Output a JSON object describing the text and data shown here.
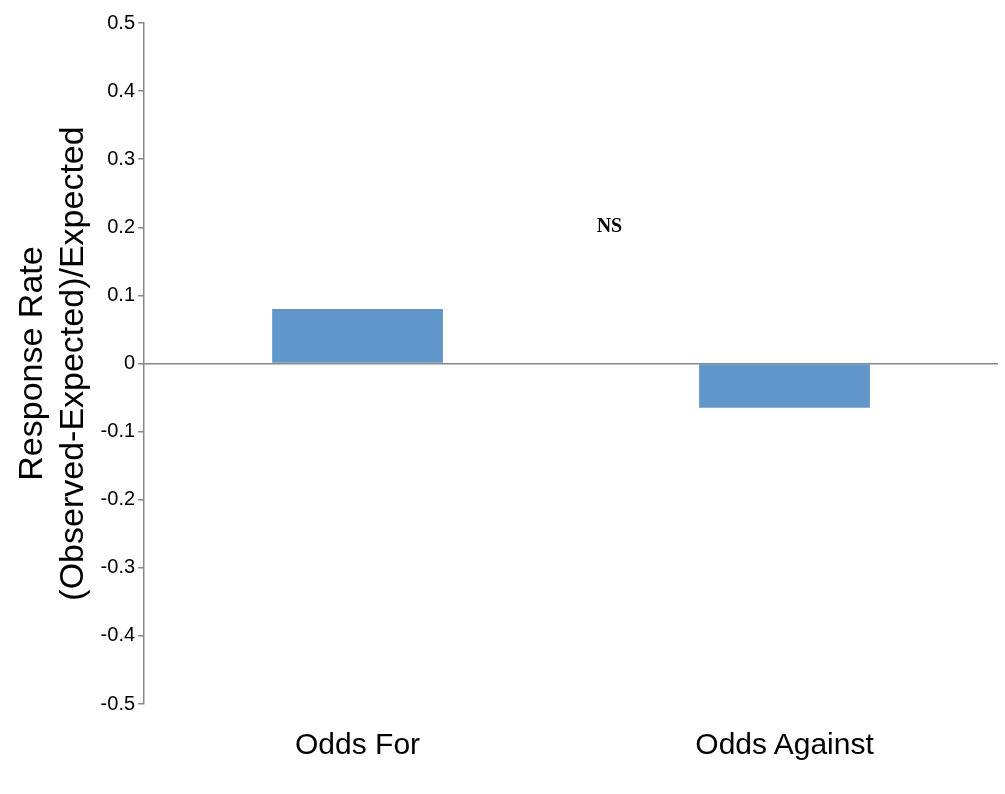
{
  "chart_data": {
    "type": "bar",
    "ylabel": "Response Rate\n(Observed-Expected)/Expected",
    "categories": [
      "Odds For",
      "Odds Against"
    ],
    "values": [
      0.08,
      -0.065
    ],
    "color": "#6096c9",
    "ylim": [
      -0.5,
      0.5
    ],
    "yticks": [
      -0.5,
      -0.4,
      -0.3,
      -0.2,
      -0.1,
      0,
      0.1,
      0.2,
      0.3,
      0.4,
      0.5
    ],
    "annotations": [
      "NS"
    ],
    "legend": false
  }
}
